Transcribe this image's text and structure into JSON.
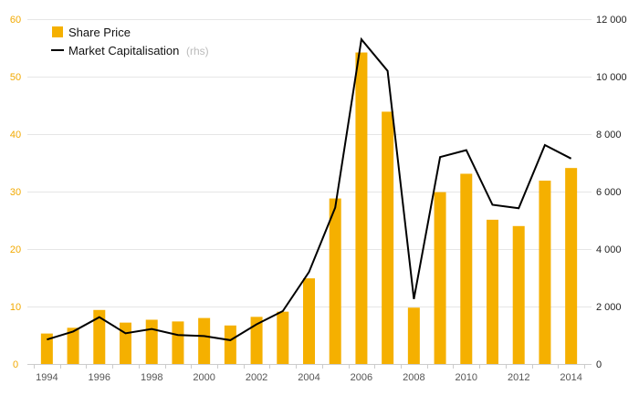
{
  "chart_data": {
    "type": "bar",
    "x": [
      1994,
      1995,
      1996,
      1997,
      1998,
      1999,
      2000,
      2001,
      2002,
      2003,
      2004,
      2005,
      2006,
      2007,
      2008,
      2009,
      2010,
      2011,
      2012,
      2013,
      2014
    ],
    "x_tick_labels": [
      "1994",
      "1996",
      "1998",
      "2000",
      "2002",
      "2004",
      "2006",
      "2008",
      "2010",
      "2012",
      "2014"
    ],
    "series": [
      {
        "name": "Share Price",
        "type": "bar",
        "axis": "left",
        "color": "#f5b000",
        "values": [
          5.3,
          6.3,
          9.4,
          7.2,
          7.7,
          7.4,
          8.0,
          6.7,
          8.2,
          9.1,
          14.9,
          28.8,
          54.2,
          43.9,
          9.8,
          29.9,
          33.1,
          25.1,
          24.0,
          31.9,
          34.1
        ]
      },
      {
        "name": "Market Capitalisation",
        "name_note": "(rhs)",
        "type": "line",
        "axis": "right",
        "color": "#000000",
        "values": [
          850,
          1130,
          1630,
          1070,
          1220,
          1010,
          970,
          830,
          1380,
          1840,
          3200,
          5440,
          11300,
          10200,
          2260,
          7200,
          7440,
          5540,
          5420,
          7620,
          7150
        ]
      }
    ],
    "y_left": {
      "min": 0,
      "max": 60,
      "ticks": [
        0,
        10,
        20,
        30,
        40,
        50,
        60
      ],
      "tick_labels": [
        "0",
        "10",
        "20",
        "30",
        "40",
        "50",
        "60"
      ],
      "color": "#f2a900"
    },
    "y_right": {
      "min": 0,
      "max": 12000,
      "ticks": [
        0,
        2000,
        4000,
        6000,
        8000,
        10000,
        12000
      ],
      "tick_labels": [
        "0",
        "2 000",
        "4 000",
        "6 000",
        "8 000",
        "10 000",
        "12 000"
      ],
      "color": "#222222"
    },
    "grid": true,
    "legend": "top-left"
  }
}
